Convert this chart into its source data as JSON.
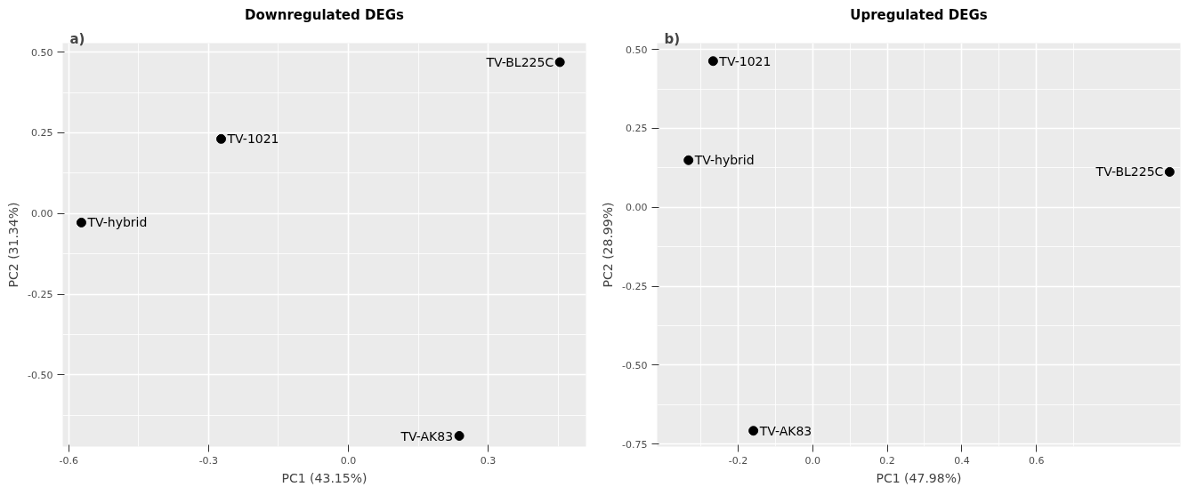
{
  "chart_data": [
    {
      "type": "scatter",
      "title": "Downregulated DEGs",
      "annotations": [
        "a)"
      ],
      "xlabel": "PC1 (43.15%)",
      "ylabel": "PC2 (31.34%)",
      "xlim": [
        -0.613,
        0.51
      ],
      "ylim": [
        -0.722,
        0.528
      ],
      "xticks": [
        -0.6,
        -0.3,
        {
          "value": 0,
          "label": "0.0"
        },
        0.3
      ],
      "yticks": [
        {
          "value": -0.5,
          "label": "-0.50"
        },
        {
          "value": -0.25,
          "label": "-0.25"
        },
        {
          "value": 0,
          "label": "0.00"
        },
        {
          "value": 0.25,
          "label": "0.25"
        },
        {
          "value": 0.5,
          "label": "0.50"
        }
      ],
      "grid": true,
      "marker": "circle",
      "series": [
        {
          "name": "TV-BL225C",
          "color": "#000000",
          "x": [
            0.454
          ],
          "values": [
            0.469
          ]
        },
        {
          "name": "TV-1021",
          "color": "#000000",
          "x": [
            -0.273
          ],
          "values": [
            0.231
          ]
        },
        {
          "name": "TV-hybrid",
          "color": "#000000",
          "x": [
            -0.573
          ],
          "values": [
            -0.028
          ]
        },
        {
          "name": "TV-AK83",
          "color": "#000000",
          "x": [
            0.238
          ],
          "values": [
            -0.689
          ]
        }
      ]
    },
    {
      "type": "scatter",
      "title": "Upregulated DEGs",
      "annotations": [
        "b)"
      ],
      "xlabel": "PC1 (47.98%)",
      "ylabel": "PC2 (28.99%)",
      "xlim": [
        -0.417,
        0.986
      ],
      "ylim": [
        -0.758,
        0.52
      ],
      "xticks": [
        -0.2,
        {
          "value": 0,
          "label": "0.0"
        },
        0.2,
        0.4,
        0.6
      ],
      "yticks": [
        {
          "value": -0.75,
          "label": "-0.75"
        },
        {
          "value": -0.5,
          "label": "-0.50"
        },
        {
          "value": -0.25,
          "label": "-0.25"
        },
        {
          "value": 0,
          "label": "0.00"
        },
        {
          "value": 0.25,
          "label": "0.25"
        },
        {
          "value": 0.5,
          "label": "0.50"
        }
      ],
      "grid": true,
      "marker": "circle",
      "series": [
        {
          "name": "TV-1021",
          "color": "#000000",
          "x": [
            -0.267
          ],
          "values": [
            0.463
          ]
        },
        {
          "name": "TV-hybrid",
          "color": "#000000",
          "x": [
            -0.333
          ],
          "values": [
            0.149
          ]
        },
        {
          "name": "TV-BL225C",
          "color": "#000000",
          "x": [
            0.957
          ],
          "values": [
            0.112
          ]
        },
        {
          "name": "TV-AK83",
          "color": "#000000",
          "x": [
            -0.159
          ],
          "values": [
            -0.708
          ]
        }
      ]
    }
  ]
}
